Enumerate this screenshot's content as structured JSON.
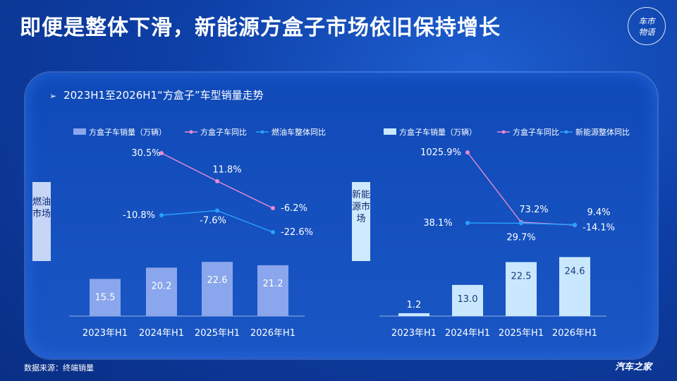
{
  "header": {
    "title": "即便是整体下滑，新能源方盒子市场依旧保持增长",
    "logo_text": "车市物语"
  },
  "section": {
    "subtitle": "2023H1至2026H1“方盒子”车型销量走势",
    "arrow": "➢"
  },
  "footer": {
    "source": "数据来源：终端销量",
    "brand": "汽车之家"
  },
  "colors": {
    "bar_left": "#8aa6ec",
    "bar_right": "#c9e8ff",
    "line_pink": "#e98ad3",
    "line_blue": "#2aa0ff"
  },
  "chart_data": [
    {
      "type": "bar",
      "side_label": "燃油市场",
      "categories": [
        "2023年H1",
        "2024年H1",
        "2025年H1",
        "2026年H1"
      ],
      "legend": [
        "方盒子车销量（万辆）",
        "方盒子车同比",
        "燃油车整体同比"
      ],
      "series": [
        {
          "name": "方盒子车销量（万辆）",
          "kind": "bar",
          "values": [
            15.5,
            20.2,
            22.6,
            21.2
          ],
          "labels": [
            "15.5",
            "20.2",
            "22.6",
            "21.2"
          ]
        },
        {
          "name": "方盒子车同比",
          "kind": "line",
          "values": [
            null,
            30.5,
            11.8,
            -6.2
          ],
          "labels": [
            "",
            "30.5%",
            "11.8%",
            "-6.2%"
          ]
        },
        {
          "name": "燃油车整体同比",
          "kind": "line",
          "values": [
            null,
            -10.8,
            -7.6,
            -22.6
          ],
          "labels": [
            "",
            "-10.8%",
            "-7.6%",
            "-22.6%"
          ]
        }
      ]
    },
    {
      "type": "bar",
      "side_label": "新能源市场",
      "categories": [
        "2023年H1",
        "2024年H1",
        "2025年H1",
        "2026年H1"
      ],
      "legend": [
        "方盒子车销量（万辆）",
        "方盒子车同比",
        "新能源整体同比"
      ],
      "series": [
        {
          "name": "方盒子车销量（万辆）",
          "kind": "bar",
          "values": [
            1.2,
            13.0,
            22.5,
            24.6
          ],
          "labels": [
            "1.2",
            "13.0",
            "22.5",
            "24.6"
          ]
        },
        {
          "name": "方盒子车同比",
          "kind": "line",
          "values": [
            null,
            1025.9,
            73.2,
            9.4
          ],
          "labels": [
            "",
            "1025.9%",
            "73.2%",
            "9.4%"
          ]
        },
        {
          "name": "新能源整体同比",
          "kind": "line",
          "values": [
            null,
            38.1,
            29.7,
            -14.1
          ],
          "labels": [
            "",
            "38.1%",
            "29.7%",
            "-14.1%"
          ]
        }
      ]
    }
  ]
}
